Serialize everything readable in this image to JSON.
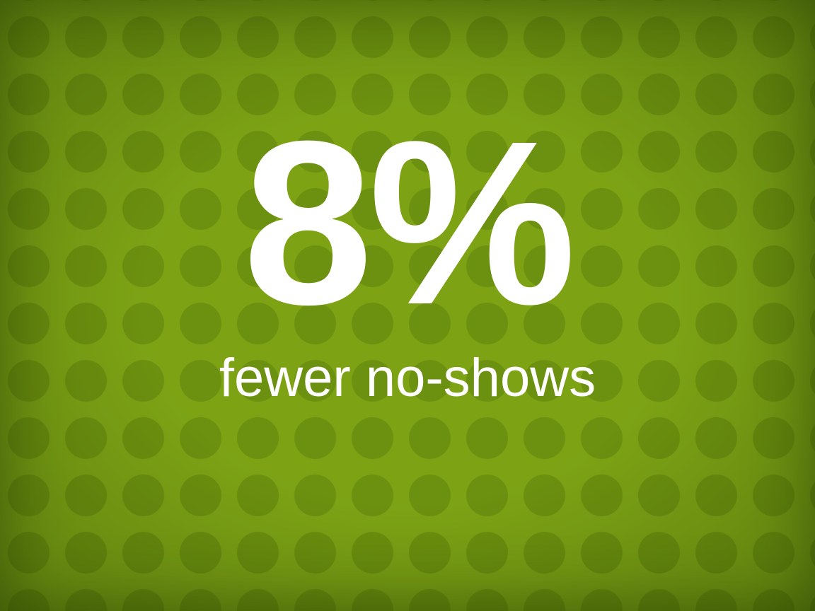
{
  "slide": {
    "headline_value": "8%",
    "caption": "fewer no-shows",
    "colors": {
      "background": "#7da315",
      "dot_pattern": "#5f8500",
      "text": "#ffffff"
    },
    "background_pattern": "dot-grid"
  }
}
